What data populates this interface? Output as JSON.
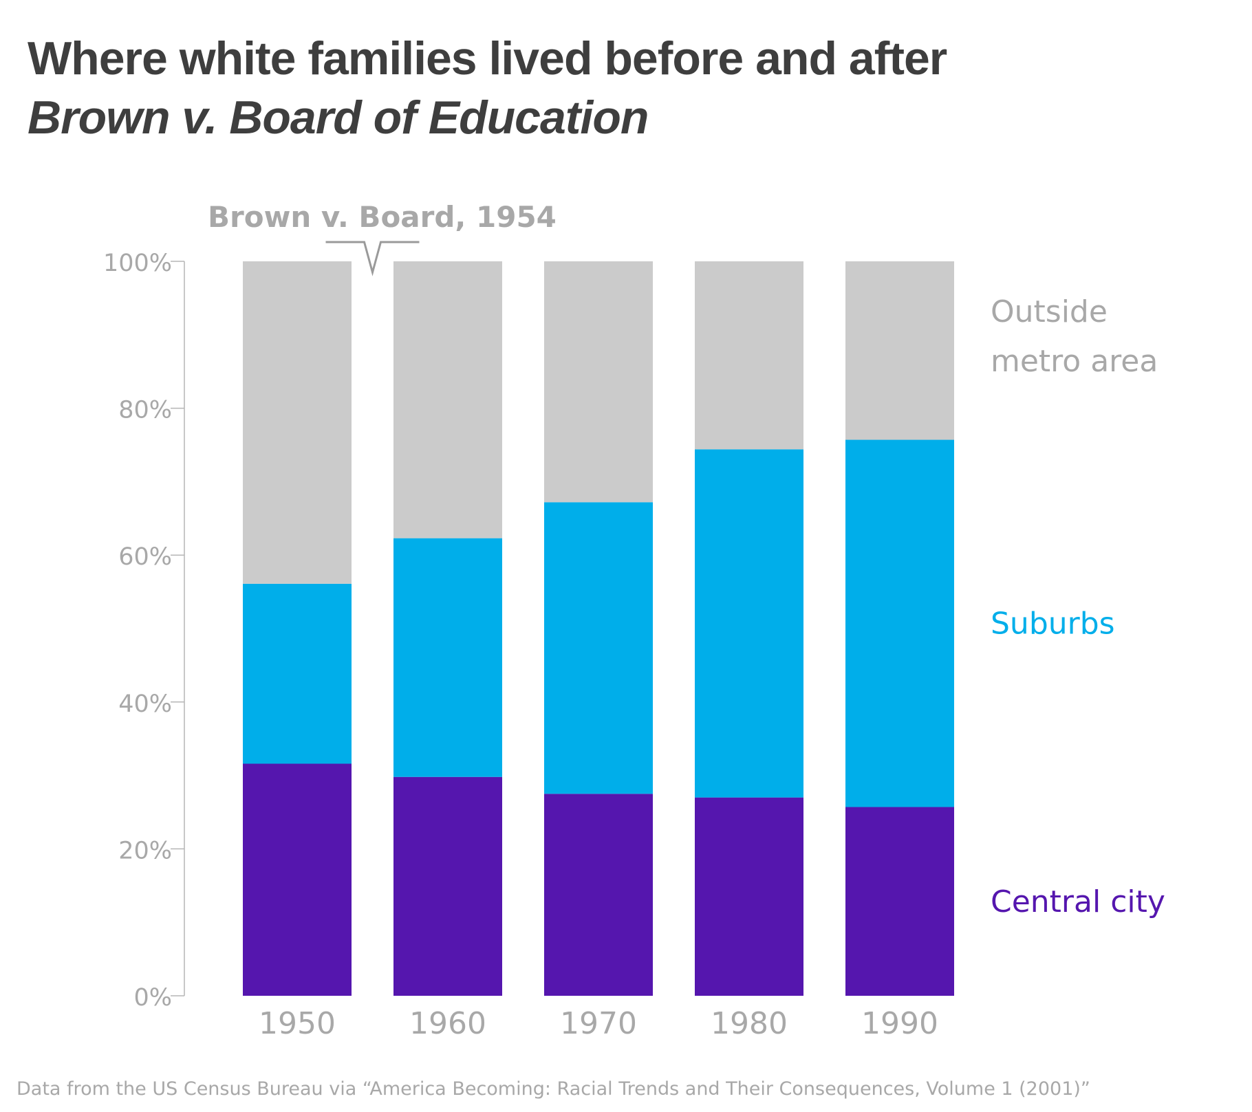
{
  "chart_data": {
    "type": "bar",
    "stacked": true,
    "title": "Where white families lived before and after",
    "subtitle": "Brown v. Board of Education",
    "categories": [
      "1950",
      "1960",
      "1970",
      "1980",
      "1990"
    ],
    "series": [
      {
        "name": "Central city",
        "values": [
          31.6,
          29.8,
          27.5,
          27.0,
          25.7
        ],
        "color": "#5516ae"
      },
      {
        "name": "Suburbs",
        "values": [
          24.5,
          32.5,
          39.7,
          47.4,
          50.0
        ],
        "color": "#00aeea"
      },
      {
        "name": "Outside metro area",
        "values": [
          43.9,
          37.7,
          32.8,
          25.6,
          24.3
        ],
        "color": "#cbcbcb"
      }
    ],
    "series_labels": [
      {
        "series": "Outside metro area",
        "lines": [
          "Outside",
          "metro area"
        ],
        "color": "#a8a8a8"
      },
      {
        "series": "Suburbs",
        "lines": [
          "Suburbs"
        ],
        "color": "#00aeea"
      },
      {
        "series": "Central city",
        "lines": [
          "Central city"
        ],
        "color": "#5516ae"
      }
    ],
    "ylim": [
      0,
      100
    ],
    "yticks": [
      "0%",
      "20%",
      "40%",
      "60%",
      "80%",
      "100%"
    ],
    "ytick_values": [
      0,
      20,
      40,
      60,
      80,
      100
    ],
    "annotation": {
      "text": "Brown v. Board, 1954",
      "between": [
        "1950",
        "1960"
      ]
    },
    "grid": false,
    "legend": "right, inline labels",
    "source": "Data from the US Census Bureau via “America Becoming: Racial Trends and Their Consequences, Volume 1 (2001)”"
  }
}
